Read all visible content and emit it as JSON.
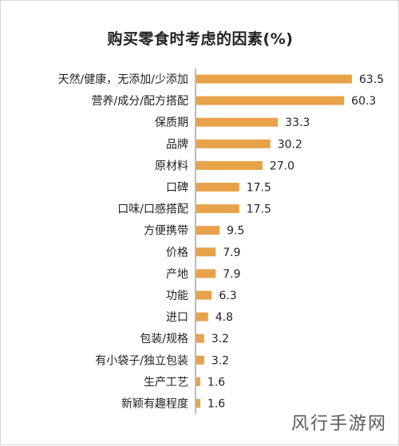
{
  "chart_data": {
    "type": "bar",
    "orientation": "horizontal",
    "title": "购买零食时考虑的因素(%)",
    "categories": [
      "天然/健康，无添加/少添加",
      "营养/成分/配方搭配",
      "保质期",
      "品牌",
      "原材料",
      "口碑",
      "口味/口感搭配",
      "方便携带",
      "价格",
      "产地",
      "功能",
      "进口",
      "包装/规格",
      "有小袋子/独立包装",
      "生产工艺",
      "新颖有趣程度"
    ],
    "values": [
      63.5,
      60.3,
      33.3,
      30.2,
      27.0,
      17.5,
      17.5,
      9.5,
      7.9,
      7.9,
      6.3,
      4.8,
      3.2,
      3.2,
      1.6,
      1.6
    ],
    "value_labels": [
      "63.5",
      "60.3",
      "33.3",
      "30.2",
      "27.0",
      "17.5",
      "17.5",
      "9.5",
      "7.9",
      "7.9",
      "6.3",
      "4.8",
      "3.2",
      "3.2",
      "1.6",
      "1.6"
    ],
    "xlim": [
      0,
      63.5
    ],
    "grid": false,
    "bar_color": "#e8a24a",
    "axis_color": "#777777"
  },
  "watermark": "风行手游网"
}
